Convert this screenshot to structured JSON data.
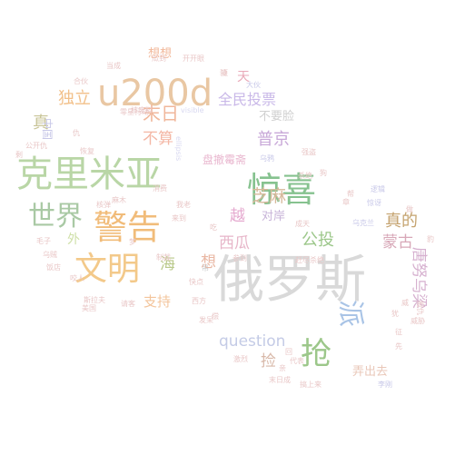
{
  "words": [
    {
      "text": "俄罗斯",
      "color": "#d9d9d9"
    },
    {
      "text": "克里米亚",
      "color": "#b9d6a6"
    },
    {
      "text": "u200d",
      "color": "#e9c7a3"
    },
    {
      "text": "惊喜",
      "color": "#86c28f"
    },
    {
      "text": "警告",
      "color": "#f1bc7a"
    },
    {
      "text": "文明",
      "color": "#f3c98a"
    },
    {
      "text": "世界",
      "color": "#a9c9a4"
    },
    {
      "text": "抢",
      "color": "#9cc78a"
    },
    {
      "text": "派",
      "color": "#a9c4e6"
    },
    {
      "text": "全民投票",
      "color": "#c9b8e8"
    },
    {
      "text": "末日",
      "color": "#f0b79b"
    },
    {
      "text": "真的",
      "color": "#c5a36f"
    },
    {
      "text": "蒙古",
      "color": "#d8a8b8"
    },
    {
      "text": "唐努乌梁",
      "color": "#d6b0cf"
    },
    {
      "text": "question",
      "color": "#c4cbe6"
    },
    {
      "text": "不算",
      "color": "#f4b7a5"
    },
    {
      "text": "普京",
      "color": "#c8a8d8"
    },
    {
      "text": "芝麻",
      "color": "#d6b89a"
    },
    {
      "text": "越",
      "color": "#e5a9cf"
    },
    {
      "text": "对岸",
      "color": "#c7b3d8"
    },
    {
      "text": "西瓜",
      "color": "#e7b6c9"
    },
    {
      "text": "公投",
      "color": "#9cc78a"
    },
    {
      "text": "独立",
      "color": "#f2c08a"
    },
    {
      "text": "真",
      "color": "#c8c497"
    },
    {
      "text": "想想",
      "color": "#f2b99b"
    },
    {
      "text": "海",
      "color": "#b9c98a"
    },
    {
      "text": "外",
      "color": "#cfe0a8"
    },
    {
      "text": "想",
      "color": "#e9b7a3"
    },
    {
      "text": "支持",
      "color": "#f3c49b"
    },
    {
      "text": "不要脸",
      "color": "#d0d0d0"
    },
    {
      "text": "捡",
      "color": "#d8b8a8"
    },
    {
      "text": "弄出去",
      "color": "#e9c7b8"
    },
    {
      "text": "中国",
      "color": "#c8c8e8"
    },
    {
      "text": "盘撤霉斋",
      "color": "#e9b7cf"
    },
    {
      "text": "天",
      "color": "#e9a9b8"
    },
    {
      "text": "瓜到",
      "color": "#e9c7c7"
    },
    {
      "text": "开开眼",
      "color": "#e9c7c7"
    },
    {
      "text": "当成",
      "color": "#e9c7c7"
    },
    {
      "text": "visible",
      "color": "#d8d8f0"
    },
    {
      "text": "吊",
      "color": "#c9c9c9"
    },
    {
      "text": "西方",
      "color": "#e9c7c7"
    },
    {
      "text": "快点",
      "color": "#e9c7c7"
    },
    {
      "text": "发呆",
      "color": "#e9c7c7"
    },
    {
      "text": "激烈",
      "color": "#e9c7c7"
    },
    {
      "text": "末日成",
      "color": "#e9c7c7"
    },
    {
      "text": "搞上来",
      "color": "#e9c7c7"
    },
    {
      "text": "李刚",
      "color": "#c8c8e8"
    },
    {
      "text": "威胁",
      "color": "#e9c7c7"
    },
    {
      "text": "报仇",
      "color": "#e9c7c7"
    },
    {
      "text": "惊讶",
      "color": "#c8c8e8"
    },
    {
      "text": "逻辑",
      "color": "#c8c8e8"
    },
    {
      "text": "乌克兰",
      "color": "#c8c8e8"
    },
    {
      "text": "成天",
      "color": "#e9c7c7"
    },
    {
      "text": "赶尽杀绝",
      "color": "#e9c7c7"
    },
    {
      "text": "参到",
      "color": "#e9c7c7"
    },
    {
      "text": "斯拉夫",
      "color": "#e9c7c7"
    },
    {
      "text": "美国",
      "color": "#e9c7c7"
    },
    {
      "text": "毛子",
      "color": "#e9c7c7"
    },
    {
      "text": "乌贼",
      "color": "#e9c7c7"
    },
    {
      "text": "饭店",
      "color": "#e9c7c7"
    },
    {
      "text": "咬人",
      "color": "#e9c7c7"
    },
    {
      "text": "请客",
      "color": "#e9c7c7"
    },
    {
      "text": "制裁",
      "color": "#e9c7c7"
    },
    {
      "text": "麻木",
      "color": "#e9c7c7"
    },
    {
      "text": "核弹",
      "color": "#e9c7c7"
    },
    {
      "text": "核废料",
      "color": "#e9c7c7"
    },
    {
      "text": "合伙",
      "color": "#e9c7c7"
    },
    {
      "text": "公开仇",
      "color": "#e9c7c7"
    },
    {
      "text": "剩",
      "color": "#e9c7c7"
    },
    {
      "text": "来到",
      "color": "#e9c7c7"
    },
    {
      "text": "我老",
      "color": "#e9c7c7"
    },
    {
      "text": "大伙",
      "color": "#c8c8e8"
    },
    {
      "text": "骑",
      "color": "#e9c7c7"
    },
    {
      "text": "乌鸦",
      "color": "#c8c8e8"
    },
    {
      "text": "强盗",
      "color": "#e9c7c7"
    },
    {
      "text": "杀绝",
      "color": "#e9c7c7"
    },
    {
      "text": "狗",
      "color": "#e9c7c7"
    },
    {
      "text": "回",
      "color": "#e9c7c7"
    },
    {
      "text": "代表",
      "color": "#e9c7c7"
    },
    {
      "text": "亲",
      "color": "#e9c7c7"
    },
    {
      "text": "先",
      "color": "#e9c7c7"
    },
    {
      "text": "ellipsis",
      "color": "#d8d8f0"
    },
    {
      "text": "零星行动",
      "color": "#e9c7c7"
    },
    {
      "text": "项",
      "color": "#e9c7c7"
    },
    {
      "text": "恢复",
      "color": "#e9c7c7"
    },
    {
      "text": "消费",
      "color": "#e9c7c7"
    },
    {
      "text": "章",
      "color": "#e9c7c7"
    },
    {
      "text": "豹",
      "color": "#e9c7c7"
    },
    {
      "text": "征",
      "color": "#e9c7c7"
    },
    {
      "text": "犹",
      "color": "#e9c7c7"
    },
    {
      "text": "做",
      "color": "#e9c7c7"
    },
    {
      "text": "帮",
      "color": "#e9c7c7"
    },
    {
      "text": "偿",
      "color": "#e9c7c7"
    },
    {
      "text": "吃",
      "color": "#e9c7c7"
    },
    {
      "text": "梦",
      "color": "#e9c7c7"
    },
    {
      "text": "仇",
      "color": "#e9c7c7"
    },
    {
      "text": "威",
      "color": "#e9c7c7"
    }
  ]
}
